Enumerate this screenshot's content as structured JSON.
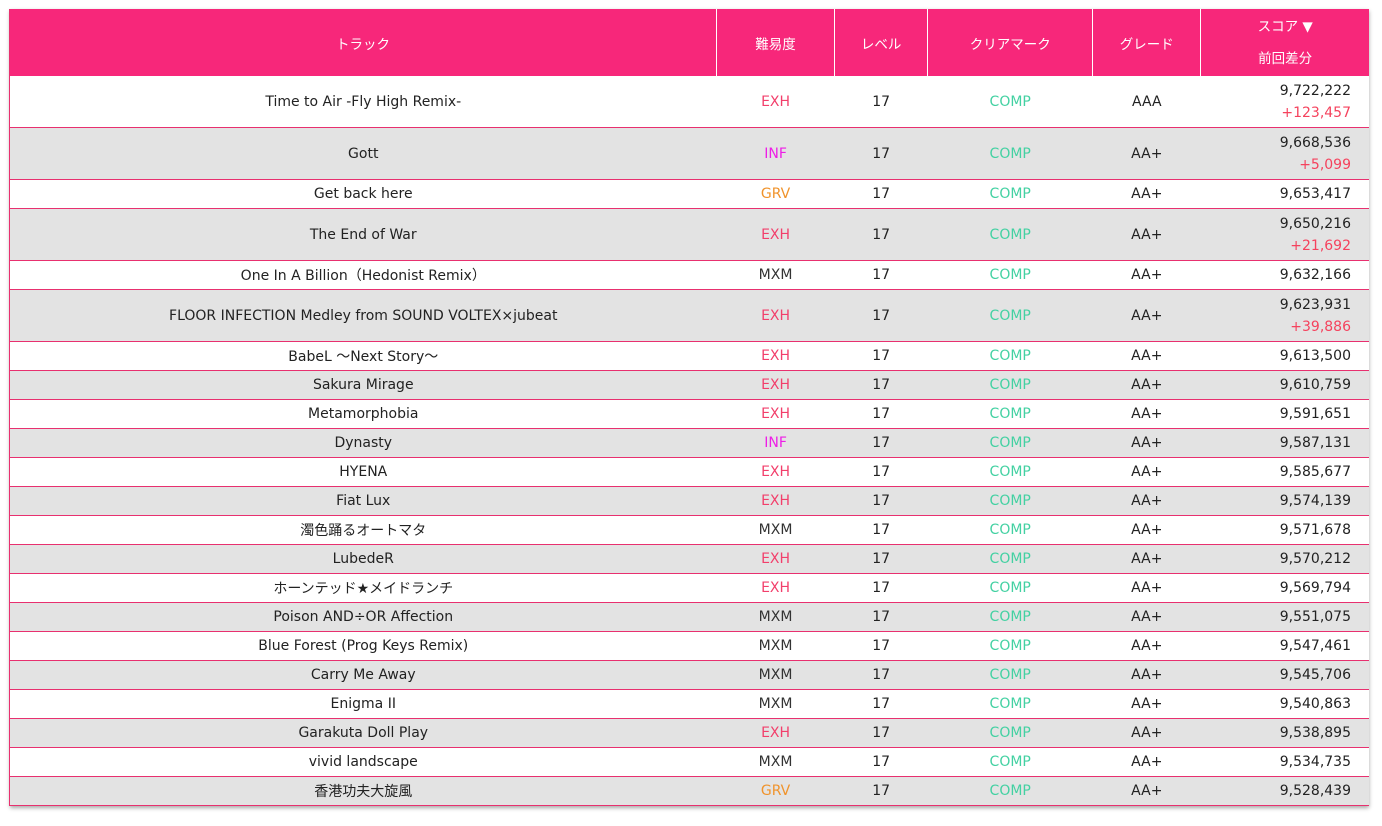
{
  "header": {
    "track": "トラック",
    "difficulty": "難易度",
    "level": "レベル",
    "clear_mark": "クリアマーク",
    "grade": "グレード",
    "score": "スコア ▼",
    "diff": "前回差分"
  },
  "colors": {
    "header_bg": "#f7277a",
    "EXH": "#f23f6b",
    "INF": "#ee1ee6",
    "GRV": "#f0932b",
    "MXM": "#333333",
    "clear": "#43d1a2",
    "diff": "#f5425d"
  },
  "rows": [
    {
      "track": "Time to Air -Fly High Remix-",
      "difficulty": "EXH",
      "level": "17",
      "clear": "COMP",
      "grade": "AAA",
      "score": "9,722,222",
      "diff": "+123,457"
    },
    {
      "track": "Gott",
      "difficulty": "INF",
      "level": "17",
      "clear": "COMP",
      "grade": "AA+",
      "score": "9,668,536",
      "diff": "+5,099"
    },
    {
      "track": "Get back here",
      "difficulty": "GRV",
      "level": "17",
      "clear": "COMP",
      "grade": "AA+",
      "score": "9,653,417",
      "diff": ""
    },
    {
      "track": "The End of War",
      "difficulty": "EXH",
      "level": "17",
      "clear": "COMP",
      "grade": "AA+",
      "score": "9,650,216",
      "diff": "+21,692"
    },
    {
      "track": "One In A Billion（Hedonist Remix）",
      "difficulty": "MXM",
      "level": "17",
      "clear": "COMP",
      "grade": "AA+",
      "score": "9,632,166",
      "diff": ""
    },
    {
      "track": "FLOOR INFECTION Medley from SOUND VOLTEX×jubeat",
      "difficulty": "EXH",
      "level": "17",
      "clear": "COMP",
      "grade": "AA+",
      "score": "9,623,931",
      "diff": "+39,886"
    },
    {
      "track": "BabeL ～Next Story～",
      "difficulty": "EXH",
      "level": "17",
      "clear": "COMP",
      "grade": "AA+",
      "score": "9,613,500",
      "diff": ""
    },
    {
      "track": "Sakura Mirage",
      "difficulty": "EXH",
      "level": "17",
      "clear": "COMP",
      "grade": "AA+",
      "score": "9,610,759",
      "diff": ""
    },
    {
      "track": "Metamorphobia",
      "difficulty": "EXH",
      "level": "17",
      "clear": "COMP",
      "grade": "AA+",
      "score": "9,591,651",
      "diff": ""
    },
    {
      "track": "Dynasty",
      "difficulty": "INF",
      "level": "17",
      "clear": "COMP",
      "grade": "AA+",
      "score": "9,587,131",
      "diff": ""
    },
    {
      "track": "HYENA",
      "difficulty": "EXH",
      "level": "17",
      "clear": "COMP",
      "grade": "AA+",
      "score": "9,585,677",
      "diff": ""
    },
    {
      "track": "Fiat Lux",
      "difficulty": "EXH",
      "level": "17",
      "clear": "COMP",
      "grade": "AA+",
      "score": "9,574,139",
      "diff": ""
    },
    {
      "track": "濁色踊るオートマタ",
      "difficulty": "MXM",
      "level": "17",
      "clear": "COMP",
      "grade": "AA+",
      "score": "9,571,678",
      "diff": ""
    },
    {
      "track": "LubedeR",
      "difficulty": "EXH",
      "level": "17",
      "clear": "COMP",
      "grade": "AA+",
      "score": "9,570,212",
      "diff": ""
    },
    {
      "track": "ホーンテッド★メイドランチ",
      "difficulty": "EXH",
      "level": "17",
      "clear": "COMP",
      "grade": "AA+",
      "score": "9,569,794",
      "diff": ""
    },
    {
      "track": "Poison AND÷OR Affection",
      "difficulty": "MXM",
      "level": "17",
      "clear": "COMP",
      "grade": "AA+",
      "score": "9,551,075",
      "diff": ""
    },
    {
      "track": "Blue Forest (Prog Keys Remix)",
      "difficulty": "MXM",
      "level": "17",
      "clear": "COMP",
      "grade": "AA+",
      "score": "9,547,461",
      "diff": ""
    },
    {
      "track": "Carry Me Away",
      "difficulty": "MXM",
      "level": "17",
      "clear": "COMP",
      "grade": "AA+",
      "score": "9,545,706",
      "diff": ""
    },
    {
      "track": "Enigma II",
      "difficulty": "MXM",
      "level": "17",
      "clear": "COMP",
      "grade": "AA+",
      "score": "9,540,863",
      "diff": ""
    },
    {
      "track": "Garakuta Doll Play",
      "difficulty": "EXH",
      "level": "17",
      "clear": "COMP",
      "grade": "AA+",
      "score": "9,538,895",
      "diff": ""
    },
    {
      "track": "vivid landscape",
      "difficulty": "MXM",
      "level": "17",
      "clear": "COMP",
      "grade": "AA+",
      "score": "9,534,735",
      "diff": ""
    },
    {
      "track": "香港功夫大旋風",
      "difficulty": "GRV",
      "level": "17",
      "clear": "COMP",
      "grade": "AA+",
      "score": "9,528,439",
      "diff": ""
    }
  ]
}
